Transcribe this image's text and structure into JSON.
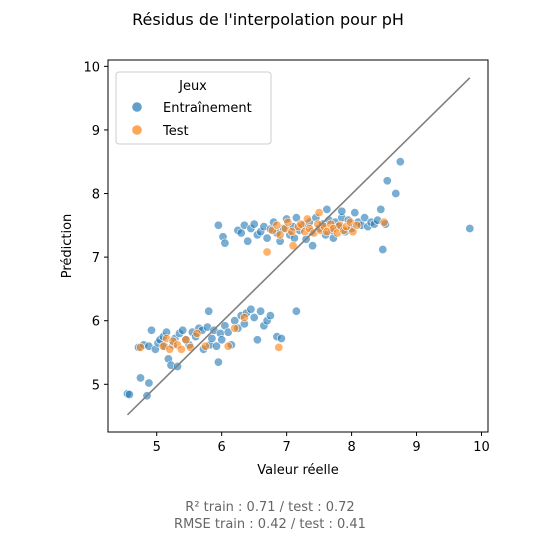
{
  "chart_data": {
    "type": "scatter",
    "title": "Résidus de l'interpolation pour pH",
    "xlabel": "Valeur réelle",
    "ylabel": "Prédiction",
    "xlim": [
      4.25,
      10.1
    ],
    "ylim": [
      4.25,
      10.1
    ],
    "xticks": [
      5,
      6,
      7,
      8,
      9,
      10
    ],
    "yticks": [
      5,
      6,
      7,
      8,
      9,
      10
    ],
    "grid": false,
    "legend": {
      "title": "Jeux",
      "position": "top-left"
    },
    "identity_line": {
      "x": [
        4.55,
        9.82
      ],
      "y": [
        4.52,
        9.82
      ],
      "color": "#808080"
    },
    "series": [
      {
        "name": "Entraînement",
        "color": "#1f77b4",
        "points": [
          [
            4.55,
            4.85
          ],
          [
            4.58,
            4.84
          ],
          [
            4.75,
            5.1
          ],
          [
            4.85,
            4.82
          ],
          [
            4.88,
            5.02
          ],
          [
            4.72,
            5.58
          ],
          [
            4.8,
            5.62
          ],
          [
            4.88,
            5.6
          ],
          [
            4.92,
            5.85
          ],
          [
            4.98,
            5.55
          ],
          [
            5.02,
            5.65
          ],
          [
            5.05,
            5.7
          ],
          [
            5.1,
            5.75
          ],
          [
            5.12,
            5.6
          ],
          [
            5.15,
            5.82
          ],
          [
            5.18,
            5.4
          ],
          [
            5.22,
            5.3
          ],
          [
            5.25,
            5.62
          ],
          [
            5.28,
            5.72
          ],
          [
            5.32,
            5.28
          ],
          [
            5.35,
            5.8
          ],
          [
            5.4,
            5.85
          ],
          [
            5.45,
            5.7
          ],
          [
            5.5,
            5.62
          ],
          [
            5.55,
            5.82
          ],
          [
            5.6,
            5.75
          ],
          [
            5.65,
            5.88
          ],
          [
            5.7,
            5.85
          ],
          [
            5.72,
            5.55
          ],
          [
            5.78,
            5.9
          ],
          [
            5.82,
            5.62
          ],
          [
            5.85,
            5.72
          ],
          [
            5.88,
            5.85
          ],
          [
            5.92,
            5.6
          ],
          [
            5.95,
            5.35
          ],
          [
            5.98,
            5.8
          ],
          [
            5.8,
            6.15
          ],
          [
            6.0,
            5.7
          ],
          [
            6.05,
            5.92
          ],
          [
            6.1,
            5.82
          ],
          [
            6.15,
            5.62
          ],
          [
            6.2,
            6.0
          ],
          [
            6.25,
            5.88
          ],
          [
            6.3,
            6.08
          ],
          [
            6.35,
            5.95
          ],
          [
            6.38,
            6.12
          ],
          [
            6.45,
            6.18
          ],
          [
            6.5,
            6.05
          ],
          [
            6.55,
            5.7
          ],
          [
            6.6,
            6.15
          ],
          [
            6.65,
            5.92
          ],
          [
            6.7,
            6.0
          ],
          [
            6.75,
            6.08
          ],
          [
            6.85,
            5.75
          ],
          [
            6.92,
            5.72
          ],
          [
            7.15,
            6.15
          ],
          [
            5.95,
            7.5
          ],
          [
            6.02,
            7.32
          ],
          [
            6.05,
            7.22
          ],
          [
            6.25,
            7.42
          ],
          [
            6.3,
            7.38
          ],
          [
            6.35,
            7.5
          ],
          [
            6.4,
            7.25
          ],
          [
            6.45,
            7.45
          ],
          [
            6.5,
            7.52
          ],
          [
            6.55,
            7.35
          ],
          [
            6.6,
            7.4
          ],
          [
            6.65,
            7.48
          ],
          [
            6.7,
            7.3
          ],
          [
            6.75,
            7.44
          ],
          [
            6.8,
            7.55
          ],
          [
            6.85,
            7.38
          ],
          [
            6.9,
            7.25
          ],
          [
            6.95,
            7.45
          ],
          [
            7.0,
            7.6
          ],
          [
            7.05,
            7.35
          ],
          [
            7.1,
            7.48
          ],
          [
            7.12,
            7.3
          ],
          [
            7.15,
            7.62
          ],
          [
            7.2,
            7.42
          ],
          [
            7.25,
            7.5
          ],
          [
            7.3,
            7.28
          ],
          [
            7.35,
            7.55
          ],
          [
            7.38,
            7.4
          ],
          [
            7.4,
            7.18
          ],
          [
            7.45,
            7.62
          ],
          [
            7.5,
            7.45
          ],
          [
            7.55,
            7.52
          ],
          [
            7.6,
            7.35
          ],
          [
            7.65,
            7.58
          ],
          [
            7.7,
            7.42
          ],
          [
            7.72,
            7.3
          ],
          [
            7.75,
            7.55
          ],
          [
            7.8,
            7.48
          ],
          [
            7.85,
            7.62
          ],
          [
            7.9,
            7.4
          ],
          [
            7.95,
            7.58
          ],
          [
            8.0,
            7.45
          ],
          [
            8.05,
            7.7
          ],
          [
            8.1,
            7.55
          ],
          [
            8.15,
            7.5
          ],
          [
            8.2,
            7.62
          ],
          [
            8.25,
            7.48
          ],
          [
            8.3,
            7.55
          ],
          [
            8.35,
            7.52
          ],
          [
            8.4,
            7.58
          ],
          [
            8.45,
            7.75
          ],
          [
            8.48,
            7.12
          ],
          [
            8.52,
            7.52
          ],
          [
            7.62,
            7.75
          ],
          [
            7.85,
            7.72
          ],
          [
            8.55,
            8.2
          ],
          [
            8.68,
            8.0
          ],
          [
            8.75,
            8.5
          ],
          [
            9.82,
            7.45
          ]
        ]
      },
      {
        "name": "Test",
        "color": "#ff7f0e",
        "points": [
          [
            4.75,
            5.58
          ],
          [
            5.1,
            5.6
          ],
          [
            5.15,
            5.72
          ],
          [
            5.2,
            5.55
          ],
          [
            5.25,
            5.68
          ],
          [
            5.32,
            5.62
          ],
          [
            5.38,
            5.55
          ],
          [
            5.45,
            5.7
          ],
          [
            5.52,
            5.58
          ],
          [
            5.62,
            5.8
          ],
          [
            5.75,
            5.6
          ],
          [
            6.1,
            5.6
          ],
          [
            6.2,
            5.88
          ],
          [
            6.35,
            6.05
          ],
          [
            6.88,
            5.58
          ],
          [
            6.7,
            7.08
          ],
          [
            6.78,
            7.42
          ],
          [
            6.85,
            7.5
          ],
          [
            6.9,
            7.35
          ],
          [
            6.98,
            7.45
          ],
          [
            7.02,
            7.55
          ],
          [
            7.08,
            7.4
          ],
          [
            7.1,
            7.18
          ],
          [
            7.18,
            7.48
          ],
          [
            7.22,
            7.52
          ],
          [
            7.28,
            7.4
          ],
          [
            7.32,
            7.6
          ],
          [
            7.35,
            7.45
          ],
          [
            7.42,
            7.38
          ],
          [
            7.48,
            7.52
          ],
          [
            7.52,
            7.42
          ],
          [
            7.58,
            7.48
          ],
          [
            7.62,
            7.4
          ],
          [
            7.68,
            7.52
          ],
          [
            7.72,
            7.45
          ],
          [
            7.78,
            7.38
          ],
          [
            7.82,
            7.5
          ],
          [
            7.88,
            7.42
          ],
          [
            7.92,
            7.48
          ],
          [
            7.98,
            7.55
          ],
          [
            8.02,
            7.4
          ],
          [
            8.08,
            7.5
          ],
          [
            7.5,
            7.7
          ],
          [
            8.5,
            7.55
          ]
        ]
      }
    ]
  },
  "caption": {
    "line1": "R² train : 0.71 / test : 0.72",
    "line2": "RMSE train : 0.42 / test : 0.41"
  }
}
